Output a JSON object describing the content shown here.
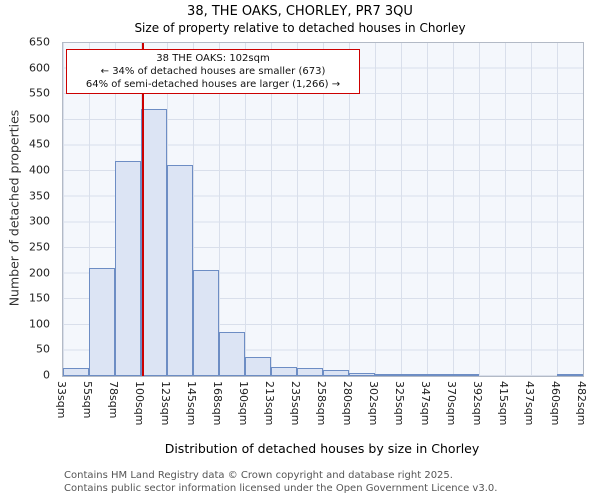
{
  "page": {
    "title": "38, THE OAKS, CHORLEY, PR7 3QU",
    "subtitle": "Size of property relative to detached houses in Chorley",
    "footer_line1": "Contains HM Land Registry data © Crown copyright and database right 2025.",
    "footer_line2": "Contains public sector information licensed under the Open Government Licence v3.0."
  },
  "annotation": {
    "line1": "38 THE OAKS: 102sqm",
    "line2": "← 34% of detached houses are smaller (673)",
    "line3": "64% of semi-detached houses are larger (1,266) →"
  },
  "chart_data": {
    "type": "bar",
    "title": "38, THE OAKS, CHORLEY, PR7 3QU",
    "subtitle": "Size of property relative to detached houses in Chorley",
    "xlabel": "Distribution of detached houses by size in Chorley",
    "ylabel": "Number of detached properties",
    "bin_edges_sqm": [
      33,
      55,
      78,
      100,
      123,
      145,
      168,
      190,
      213,
      235,
      258,
      280,
      302,
      325,
      347,
      370,
      392,
      415,
      437,
      460,
      482
    ],
    "bin_labels": [
      "33sqm",
      "55sqm",
      "78sqm",
      "100sqm",
      "123sqm",
      "145sqm",
      "168sqm",
      "190sqm",
      "213sqm",
      "235sqm",
      "258sqm",
      "280sqm",
      "302sqm",
      "325sqm",
      "347sqm",
      "370sqm",
      "392sqm",
      "415sqm",
      "437sqm",
      "460sqm",
      "482sqm"
    ],
    "values": [
      15,
      211,
      420,
      521,
      411,
      207,
      85,
      38,
      18,
      15,
      12,
      5,
      2,
      1,
      1,
      1,
      0,
      0,
      0,
      2
    ],
    "ylim": [
      0,
      650
    ],
    "y_tick_step": 50,
    "grid": true,
    "legend": "none",
    "marker_value_sqm": 102,
    "colors": {
      "bar_fill": "#dce4f4",
      "bar_border": "#6d8dc4",
      "marker_line": "#cc0000",
      "grid": "#d9dfeb",
      "plot_bg": "#f4f7fc"
    }
  }
}
